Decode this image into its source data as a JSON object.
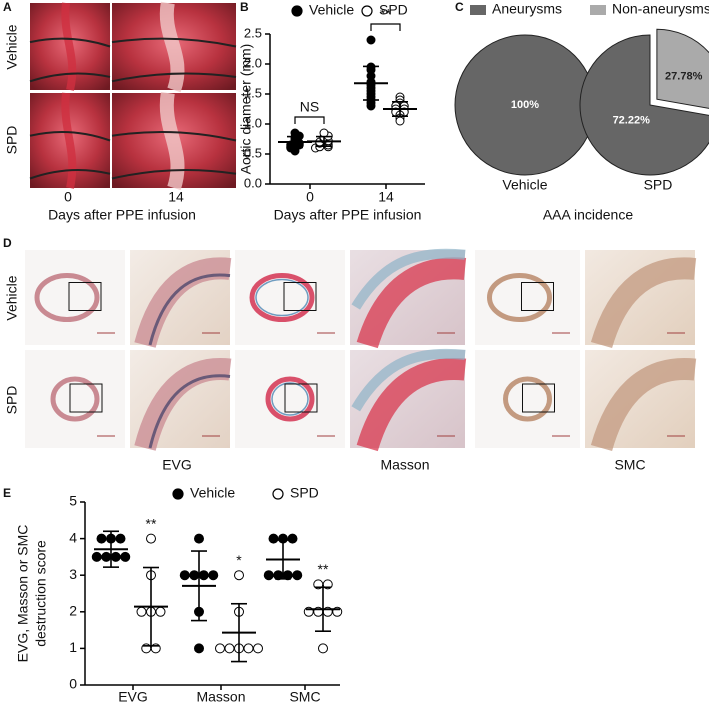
{
  "panel_a": {
    "panel": "A",
    "rows": [
      "Vehicle",
      "SPD"
    ],
    "columns": [
      "0",
      "14"
    ],
    "xlabel": "Days after PPE infusion"
  },
  "chart_data": [
    {
      "type": "dot",
      "panel": "B",
      "ylabel": "Aortic diameter (mm)",
      "xlabel": "Days after PPE infusion",
      "categories": [
        "0",
        "14"
      ],
      "series": [
        {
          "name": "Vehicle",
          "color": "#000000",
          "marker": "filled",
          "points": [
            [
              0.55,
              0.6,
              0.62,
              0.65,
              0.65,
              0.68,
              0.7,
              0.72,
              0.75,
              0.78,
              0.8,
              0.85
            ],
            [
              2.4,
              1.95,
              1.9,
              1.8,
              1.7,
              1.65,
              1.6,
              1.55,
              1.5,
              1.45,
              1.4,
              1.35,
              1.3
            ]
          ],
          "mean": [
            0.7,
            1.68
          ],
          "sd": [
            0.09,
            0.28
          ]
        },
        {
          "name": "SPD",
          "color": "#000000",
          "marker": "open",
          "points": [
            [
              0.6,
              0.62,
              0.62,
              0.65,
              0.68,
              0.7,
              0.7,
              0.72,
              0.75,
              0.78,
              0.8,
              0.85
            ],
            [
              1.45,
              1.4,
              1.35,
              1.3,
              1.3,
              1.25,
              1.25,
              1.2,
              1.2,
              1.15,
              1.1,
              1.05
            ]
          ],
          "mean": [
            0.71,
            1.25
          ],
          "sd": [
            0.08,
            0.12
          ]
        }
      ],
      "ylim": [
        0,
        2.5
      ],
      "yticks": [
        {
          "value": 0,
          "label": "0.0"
        },
        0.5,
        {
          "value": 1,
          "label": "1.0"
        },
        1.5,
        {
          "value": 2,
          "label": "2.0"
        },
        2.5
      ],
      "annotations": [
        {
          "text": "NS",
          "category": 0
        },
        {
          "text": "**",
          "category": 1
        }
      ]
    },
    {
      "type": "pie",
      "panel": "C",
      "xlabel": "AAA incidence",
      "categories": [
        "Aneurysms",
        "Non-aneurysms"
      ],
      "colors": [
        "#666666",
        "#aaaaaa"
      ],
      "pies": [
        {
          "name": "Vehicle",
          "values": [
            100
          ],
          "value_labels": [
            "100%"
          ]
        },
        {
          "name": "SPD",
          "values": [
            72.22,
            27.78
          ],
          "value_labels": [
            "72.22%",
            "27.78%"
          ]
        }
      ]
    },
    {
      "type": "dot",
      "panel": "E",
      "ylabel": [
        "EVG, Masson or SMC",
        "destruction score"
      ],
      "categories": [
        "EVG",
        "Masson",
        "SMC"
      ],
      "series": [
        {
          "name": "Vehicle",
          "color": "#000000",
          "marker": "filled",
          "points": [
            [
              4,
              4,
              4,
              3.5,
              3.5,
              3.5,
              3.5
            ],
            [
              4,
              3,
              3,
              3,
              3,
              2,
              1
            ],
            [
              4,
              4,
              4,
              3,
              3,
              3,
              3
            ]
          ],
          "mean": [
            3.71,
            2.71,
            3.43
          ],
          "sd": [
            0.49,
            0.95,
            0.53
          ]
        },
        {
          "name": "SPD",
          "color": "#000000",
          "marker": "open",
          "points": [
            [
              4,
              3,
              2,
              2,
              2,
              1,
              1
            ],
            [
              3,
              2,
              1,
              1,
              1,
              1,
              1
            ],
            [
              2.75,
              2.75,
              2,
              2,
              2,
              2,
              1
            ]
          ],
          "mean": [
            2.14,
            1.43,
            2.07
          ],
          "sd": [
            1.07,
            0.79,
            0.6
          ]
        }
      ],
      "ylim": [
        0,
        5
      ],
      "yticks": [
        0,
        1,
        2,
        3,
        4,
        5
      ],
      "annotations": [
        {
          "text": "**",
          "category": 0,
          "series": 1
        },
        {
          "text": "*",
          "category": 1,
          "series": 1
        },
        {
          "text": "**",
          "category": 2,
          "series": 1
        }
      ]
    }
  ],
  "panel_d": {
    "panel": "D",
    "rows": [
      "Vehicle",
      "SPD"
    ],
    "columns": [
      "EVG",
      "Masson",
      "SMC"
    ]
  }
}
